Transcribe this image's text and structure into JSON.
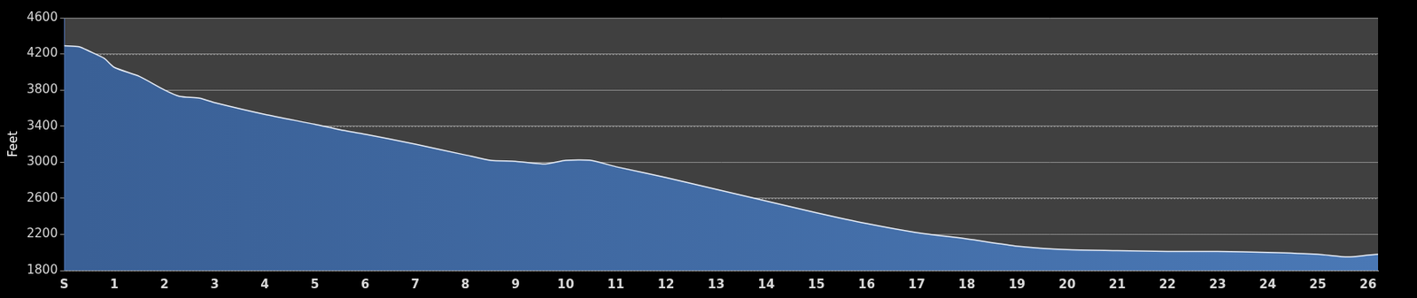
{
  "chart_data": {
    "type": "line",
    "y_label": "Feet",
    "x": [
      0,
      0.3,
      0.5,
      0.8,
      1.0,
      1.5,
      2.0,
      2.3,
      2.7,
      3.0,
      4.0,
      5.0,
      5.5,
      6.0,
      7.0,
      8.0,
      8.5,
      9.0,
      9.6,
      10.0,
      10.5,
      11.0,
      12.0,
      13.0,
      14.0,
      15.0,
      16.0,
      17.0,
      18.0,
      19.0,
      20.0,
      21.0,
      22.0,
      23.0,
      24.0,
      25.0,
      25.6,
      26.0,
      26.2
    ],
    "values": [
      4290,
      4280,
      4230,
      4150,
      4050,
      3950,
      3800,
      3730,
      3710,
      3660,
      3530,
      3420,
      3360,
      3310,
      3200,
      3080,
      3020,
      3010,
      2980,
      3020,
      3020,
      2950,
      2830,
      2700,
      2570,
      2440,
      2320,
      2220,
      2150,
      2070,
      2030,
      2020,
      2010,
      2010,
      2000,
      1980,
      1950,
      1970,
      1980
    ],
    "color": "#4a78b5",
    "xlim": [
      0,
      26.2
    ],
    "xticks": [
      {
        "value": 0,
        "label": "S"
      },
      1,
      2,
      3,
      4,
      5,
      6,
      7,
      8,
      9,
      10,
      11,
      12,
      13,
      14,
      15,
      16,
      17,
      18,
      19,
      20,
      21,
      22,
      23,
      24,
      25,
      26
    ],
    "ylim": [
      1800,
      4600
    ],
    "yticks": [
      1800,
      2200,
      2600,
      3000,
      3400,
      3800,
      4200,
      4600
    ],
    "grid": true
  }
}
